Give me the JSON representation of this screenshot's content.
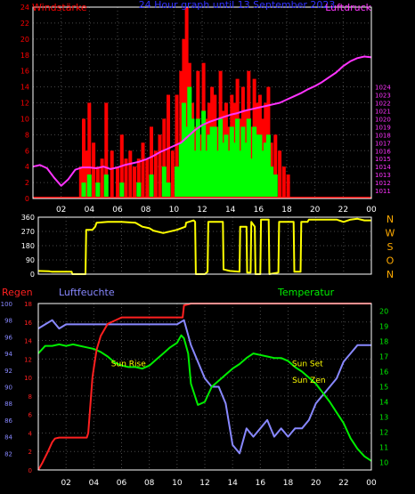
{
  "colors": {
    "background": "#000000",
    "frame": "#ffffff",
    "grid": "#4a4a4a",
    "wind_gust": "#ff0000",
    "wind_avg": "#00ff00",
    "pressure": "#ff33ff",
    "direction": "#ffff00",
    "rain": "#ff2020",
    "humidity": "#8888ff",
    "temperature": "#00ee00",
    "sun_label": "#ffff00",
    "title": "#3030ff",
    "tick_label": "#ffffff",
    "compass": "#ffaa00"
  },
  "chart_data": [
    {
      "id": "wind_pressure",
      "type": "bar",
      "title": "24 Hour graph until  13 September 2023",
      "left_label": "Windstärke",
      "right_label": "Luftdruck",
      "x_ticks": [
        "02",
        "04",
        "06",
        "08",
        "10",
        "12",
        "14",
        "16",
        "18",
        "20",
        "22",
        "00"
      ],
      "x_range": [
        0,
        24
      ],
      "y_left": {
        "range": [
          0,
          24
        ],
        "ticks": [
          "0",
          "2",
          "4",
          "6",
          "8",
          "10",
          "12",
          "14",
          "16",
          "18",
          "20",
          "22",
          "24"
        ]
      },
      "y_right": {
        "range": [
          1010,
          1034
        ],
        "ticks": [
          "1011",
          "1012",
          "1013",
          "1014",
          "1015",
          "1016",
          "1017",
          "1018",
          "1019",
          "1020",
          "1021",
          "1022",
          "1023",
          "1024"
        ]
      },
      "series": [
        {
          "name": "Gust",
          "type": "bar",
          "axis": "left",
          "x": [
            3.4,
            3.6,
            3.8,
            4.0,
            4.3,
            4.6,
            4.9,
            5.2,
            5.6,
            6.0,
            6.3,
            6.6,
            6.9,
            7.2,
            7.5,
            7.8,
            8.1,
            8.4,
            8.7,
            9.0,
            9.3,
            9.6,
            9.9,
            10.2,
            10.5,
            10.7,
            10.9,
            11.1,
            11.3,
            11.5,
            11.7,
            11.9,
            12.1,
            12.3,
            12.5,
            12.7,
            12.9,
            13.1,
            13.3,
            13.5,
            13.7,
            13.9,
            14.1,
            14.3,
            14.5,
            14.7,
            14.9,
            15.1,
            15.3,
            15.5,
            15.7,
            15.9,
            16.1,
            16.3,
            16.5,
            16.7,
            16.9,
            17.2,
            17.5,
            17.8,
            18.1
          ],
          "values": [
            4,
            10,
            6,
            12,
            7,
            4,
            5,
            12,
            6,
            4,
            8,
            5,
            6,
            4,
            5,
            7,
            5,
            9,
            6,
            8,
            10,
            13,
            6,
            13,
            16,
            20,
            24,
            17,
            12,
            9,
            16,
            8,
            17,
            10,
            12,
            14,
            13,
            9,
            16,
            11,
            12,
            9,
            13,
            12,
            15,
            10,
            14,
            11,
            16,
            9,
            15,
            12,
            13,
            10,
            12,
            14,
            7,
            8,
            6,
            4,
            3
          ]
        },
        {
          "name": "Average",
          "type": "bar",
          "axis": "left",
          "x": [
            3.6,
            4.0,
            4.6,
            5.2,
            6.3,
            7.5,
            8.4,
            9.3,
            9.6,
            10.2,
            10.5,
            10.7,
            10.9,
            11.1,
            11.3,
            11.5,
            11.7,
            11.9,
            12.1,
            12.3,
            12.5,
            12.7,
            12.9,
            13.1,
            13.3,
            13.5,
            13.7,
            13.9,
            14.1,
            14.3,
            14.5,
            14.7,
            14.9,
            15.1,
            15.3,
            15.5,
            15.7,
            15.9,
            16.1,
            16.3,
            16.5,
            16.7,
            16.9,
            17.2
          ],
          "values": [
            2,
            3,
            2,
            3,
            2,
            2,
            3,
            4,
            2,
            4,
            7,
            12,
            9,
            14,
            10,
            6,
            10,
            6,
            11,
            6,
            8,
            9,
            9,
            6,
            10,
            7,
            8,
            6,
            9,
            7,
            10,
            6,
            9,
            7,
            10,
            5,
            9,
            8,
            8,
            6,
            7,
            8,
            4,
            3
          ]
        },
        {
          "name": "Pressure",
          "type": "line",
          "axis": "right",
          "x": [
            0,
            0.5,
            1,
            1.5,
            2,
            2.5,
            3,
            3.5,
            4,
            4.5,
            5,
            5.5,
            6,
            6.5,
            7,
            7.5,
            8,
            8.5,
            9,
            9.5,
            10,
            10.5,
            11,
            11.5,
            12,
            12.5,
            13,
            13.5,
            14,
            14.5,
            15,
            15.5,
            16,
            16.5,
            17,
            17.5,
            18,
            18.5,
            19,
            19.5,
            20,
            20.5,
            21,
            21.5,
            22,
            22.5,
            23,
            23.5,
            24
          ],
          "values": [
            1014,
            1014.2,
            1013.8,
            1012.6,
            1011.6,
            1012.4,
            1013.6,
            1013.9,
            1013.9,
            1013.8,
            1014.0,
            1013.7,
            1013.9,
            1014.2,
            1014.4,
            1014.6,
            1014.9,
            1015.3,
            1015.8,
            1016.2,
            1016.6,
            1017.0,
            1017.8,
            1018.6,
            1019.2,
            1019.6,
            1019.9,
            1020.2,
            1020.5,
            1020.7,
            1021.0,
            1021.2,
            1021.4,
            1021.6,
            1021.8,
            1022.0,
            1022.4,
            1022.8,
            1023.2,
            1023.7,
            1024.1,
            1024.6,
            1025.2,
            1025.8,
            1026.6,
            1027.2,
            1027.6,
            1027.8,
            1027.7
          ]
        }
      ]
    },
    {
      "id": "wind_direction",
      "type": "line",
      "right_label": [
        "N",
        "W",
        "S",
        "O",
        "N"
      ],
      "x_range": [
        0,
        24
      ],
      "y_range": [
        0,
        360
      ],
      "y_ticks": [
        "0",
        "90",
        "180",
        "270",
        "360"
      ],
      "series": [
        {
          "name": "Direction",
          "x": [
            0,
            0.8,
            1.0,
            1.6,
            2.2,
            2.4,
            2.45,
            3.4,
            3.45,
            3.9,
            4.1,
            4.2,
            5.0,
            6.0,
            7.0,
            7.5,
            8.0,
            8.3,
            9.0,
            10.0,
            10.6,
            10.65,
            11.2,
            11.3,
            11.35,
            11.5,
            12.0,
            12.2,
            12.25,
            13.3,
            13.35,
            13.8,
            14.5,
            14.55,
            15.0,
            15.05,
            15.3,
            15.35,
            15.6,
            15.65,
            16.0,
            16.05,
            16.6,
            16.65,
            17.3,
            17.35,
            18.4,
            18.45,
            18.9,
            18.95,
            19.4,
            19.5,
            21.0,
            21.5,
            22.0,
            22.5,
            23.0,
            23.5,
            24
          ],
          "values": [
            20,
            18,
            15,
            15,
            15,
            15,
            0,
            0,
            280,
            280,
            300,
            325,
            330,
            330,
            325,
            300,
            290,
            275,
            260,
            280,
            300,
            325,
            340,
            330,
            0,
            0,
            0,
            15,
            330,
            330,
            30,
            20,
            15,
            300,
            300,
            10,
            10,
            330,
            300,
            0,
            0,
            345,
            345,
            0,
            10,
            330,
            330,
            15,
            15,
            330,
            330,
            345,
            345,
            345,
            330,
            345,
            350,
            340,
            340
          ]
        }
      ]
    },
    {
      "id": "rain_humidity_temp",
      "type": "line",
      "left_labels": [
        "Regen",
        "Luftfeuchte"
      ],
      "right_label": "Temperatur",
      "x_ticks": [
        "02",
        "04",
        "06",
        "08",
        "10",
        "12",
        "14",
        "16",
        "18",
        "20",
        "22",
        "00"
      ],
      "x_range": [
        0,
        24
      ],
      "y_humidity": {
        "range": [
          80,
          100
        ],
        "ticks": [
          "82",
          "84",
          "86",
          "88",
          "90",
          "92",
          "94",
          "96",
          "98",
          "100"
        ]
      },
      "y_rain": {
        "range": [
          0,
          18
        ],
        "ticks": [
          "0",
          "2",
          "4",
          "6",
          "8",
          "10",
          "12",
          "14",
          "16",
          "18"
        ]
      },
      "y_temp": {
        "range": [
          9.5,
          20.5
        ],
        "ticks": [
          "10",
          "11",
          "12",
          "13",
          "14",
          "15",
          "16",
          "17",
          "18",
          "19",
          "20"
        ]
      },
      "annotations": [
        {
          "text": "Sun Rise",
          "x": 6.5,
          "y": 11.6
        },
        {
          "text": "Sun Set",
          "x": 19.4,
          "y": 11.6
        },
        {
          "text": "Sun Zen",
          "x": 19.5,
          "y": 9.8
        }
      ],
      "series": [
        {
          "name": "Rain",
          "axis": "rain",
          "x": [
            0,
            0.3,
            0.7,
            1.0,
            1.2,
            1.5,
            2.0,
            3.0,
            3.5,
            3.6,
            3.9,
            4.0,
            4.2,
            4.5,
            5.0,
            6.0,
            7.0,
            8.0,
            9.0,
            10.0,
            10.4,
            10.5,
            11.0,
            12.0,
            14.0,
            16.0,
            18.0,
            20.0,
            22.0,
            24.0
          ],
          "values": [
            0,
            0.8,
            2,
            3,
            3.4,
            3.5,
            3.5,
            3.5,
            3.5,
            4,
            10,
            11,
            13,
            14.5,
            15.8,
            16.5,
            16.5,
            16.5,
            16.5,
            16.5,
            16.5,
            17.8,
            18,
            18,
            18,
            18,
            18,
            18,
            18,
            18
          ]
        },
        {
          "name": "Humidity",
          "axis": "humidity",
          "x": [
            0,
            0.5,
            1.0,
            1.5,
            2.0,
            3.0,
            4.0,
            5.0,
            6.0,
            7.0,
            8.0,
            9.0,
            10.0,
            10.5,
            11.0,
            11.5,
            12.0,
            12.5,
            13.0,
            13.5,
            14.0,
            14.5,
            15.0,
            15.5,
            16.0,
            16.5,
            17.0,
            17.5,
            18.0,
            18.5,
            19.0,
            19.5,
            20.0,
            20.5,
            21.0,
            21.5,
            22.0,
            22.5,
            23.0,
            23.5,
            24
          ],
          "values": [
            97,
            97.5,
            98,
            97,
            97.5,
            97.5,
            97.5,
            97.5,
            97.5,
            97.5,
            97.5,
            97.5,
            97.5,
            98,
            95,
            93,
            91,
            90,
            90,
            88,
            83,
            82,
            85,
            84,
            85,
            86,
            84,
            85,
            84,
            85,
            85,
            86,
            88,
            89,
            90,
            91,
            93,
            94,
            95,
            95,
            95
          ]
        },
        {
          "name": "Temperature",
          "axis": "temp",
          "x": [
            0,
            0.5,
            1.0,
            1.5,
            2.0,
            2.5,
            3.0,
            3.5,
            4.0,
            4.5,
            5.0,
            5.5,
            6.0,
            6.5,
            7.0,
            7.5,
            8.0,
            8.5,
            9.0,
            9.5,
            10.0,
            10.3,
            10.5,
            10.8,
            11.0,
            11.5,
            12.0,
            12.5,
            13.0,
            13.5,
            14.0,
            14.5,
            15.0,
            15.5,
            16.0,
            16.5,
            17.0,
            17.5,
            18.0,
            18.5,
            19.0,
            19.5,
            20.0,
            20.5,
            21.0,
            21.5,
            22.0,
            22.5,
            23.0,
            23.5,
            24
          ],
          "values": [
            17.2,
            17.7,
            17.7,
            17.8,
            17.7,
            17.8,
            17.7,
            17.6,
            17.5,
            17.3,
            17.0,
            16.6,
            16.4,
            16.3,
            16.3,
            16.2,
            16.4,
            16.8,
            17.2,
            17.6,
            17.9,
            18.4,
            18.2,
            17.2,
            15.2,
            13.8,
            14.0,
            15.0,
            15.4,
            15.8,
            16.2,
            16.5,
            16.9,
            17.2,
            17.1,
            17.0,
            16.9,
            16.9,
            16.7,
            16.3,
            16.0,
            15.6,
            15.2,
            14.6,
            14.0,
            13.3,
            12.6,
            11.6,
            10.9,
            10.4,
            10.1
          ]
        }
      ]
    }
  ]
}
